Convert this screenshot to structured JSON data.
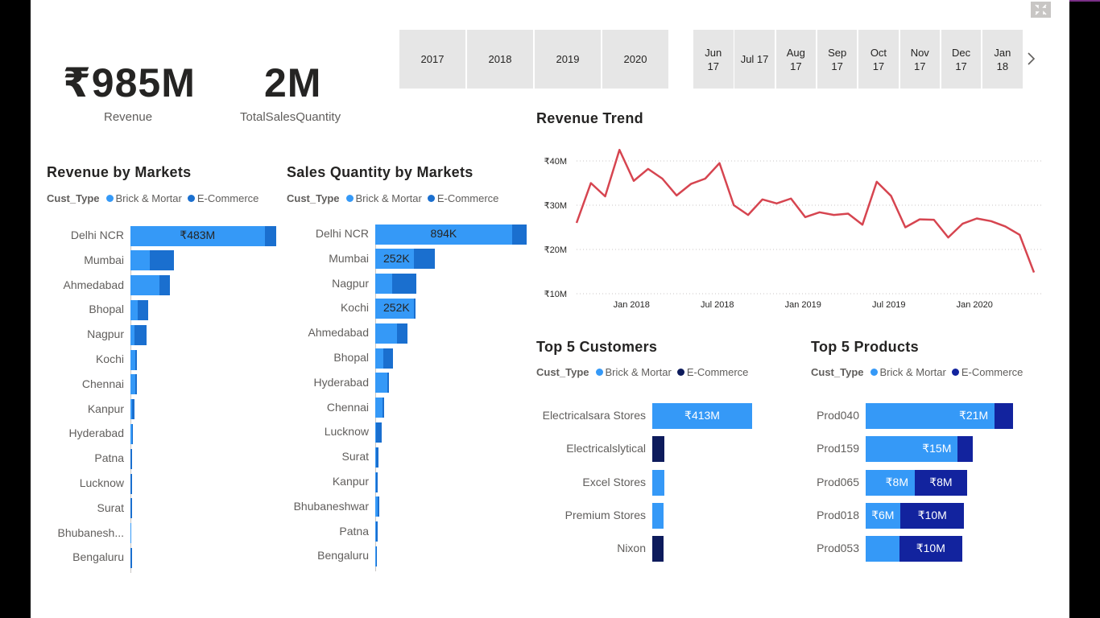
{
  "kpis": {
    "revenue": {
      "value": "₹985M",
      "label": "Revenue"
    },
    "quantity": {
      "value": "2M",
      "label": "TotalSalesQuantity"
    }
  },
  "year_slicer": [
    "2017",
    "2018",
    "2019",
    "2020"
  ],
  "month_slicer": [
    [
      "Jun",
      "17"
    ],
    [
      "Jul 17",
      ""
    ],
    [
      "Aug",
      "17"
    ],
    [
      "Sep",
      "17"
    ],
    [
      "Oct",
      "17"
    ],
    [
      "Nov",
      "17"
    ],
    [
      "Dec",
      "17"
    ],
    [
      "Jan",
      "18"
    ]
  ],
  "icons": {
    "focus": "focus-mode-icon",
    "next": "chevron-right-icon"
  },
  "colors": {
    "brick": "#3599f7",
    "ecom_markets": "#1a6fcf",
    "ecom_top": "#12239e",
    "ecom_customers": "#0d1b5c",
    "trend_line": "#d64550"
  },
  "legend": {
    "field": "Cust_Type",
    "brick": "Brick & Mortar",
    "ecom": "E-Commerce"
  },
  "revenue_markets": {
    "title": "Revenue by Markets",
    "rows": [
      {
        "name": "Delhi NCR",
        "brick": 0.92,
        "ecom": 0.08,
        "total": 1.0,
        "label": "₹483M"
      },
      {
        "name": "Mumbai",
        "brick": 0.13,
        "ecom": 0.17,
        "total": 0.3,
        "label": ""
      },
      {
        "name": "Ahmedabad",
        "brick": 0.2,
        "ecom": 0.07,
        "total": 0.27,
        "label": ""
      },
      {
        "name": "Bhopal",
        "brick": 0.05,
        "ecom": 0.07,
        "total": 0.12,
        "label": ""
      },
      {
        "name": "Nagpur",
        "brick": 0.03,
        "ecom": 0.08,
        "total": 0.11,
        "label": ""
      },
      {
        "name": "Kochi",
        "brick": 0.035,
        "ecom": 0.005,
        "total": 0.04,
        "label": ""
      },
      {
        "name": "Chennai",
        "brick": 0.035,
        "ecom": 0.005,
        "total": 0.04,
        "label": ""
      },
      {
        "name": "Kanpur",
        "brick": 0.01,
        "ecom": 0.015,
        "total": 0.025,
        "label": ""
      },
      {
        "name": "Hyderabad",
        "brick": 0.01,
        "ecom": 0.005,
        "total": 0.015,
        "label": ""
      },
      {
        "name": "Patna",
        "brick": 0.0,
        "ecom": 0.01,
        "total": 0.01,
        "label": ""
      },
      {
        "name": "Lucknow",
        "brick": 0.0,
        "ecom": 0.01,
        "total": 0.01,
        "label": ""
      },
      {
        "name": "Surat",
        "brick": 0.0,
        "ecom": 0.008,
        "total": 0.008,
        "label": ""
      },
      {
        "name": "Bhubanesh...",
        "brick": 0.004,
        "ecom": 0.0,
        "total": 0.004,
        "label": ""
      },
      {
        "name": "Bengaluru",
        "brick": 0.0,
        "ecom": 0.004,
        "total": 0.004,
        "label": ""
      }
    ]
  },
  "quantity_markets": {
    "title": "Sales Quantity by Markets",
    "rows": [
      {
        "name": "Delhi NCR",
        "brick": 894,
        "ecom": 96,
        "label": "894K"
      },
      {
        "name": "Mumbai",
        "brick": 252,
        "ecom": 140,
        "label": "252K"
      },
      {
        "name": "Nagpur",
        "brick": 110,
        "ecom": 160,
        "label": ""
      },
      {
        "name": "Kochi",
        "brick": 252,
        "ecom": 10,
        "label": "252K"
      },
      {
        "name": "Ahmedabad",
        "brick": 140,
        "ecom": 70,
        "label": ""
      },
      {
        "name": "Bhopal",
        "brick": 55,
        "ecom": 60,
        "label": ""
      },
      {
        "name": "Hyderabad",
        "brick": 80,
        "ecom": 5,
        "label": ""
      },
      {
        "name": "Chennai",
        "brick": 50,
        "ecom": 5,
        "label": ""
      },
      {
        "name": "Lucknow",
        "brick": 5,
        "ecom": 35,
        "label": ""
      },
      {
        "name": "Surat",
        "brick": 3,
        "ecom": 18,
        "label": ""
      },
      {
        "name": "Kanpur",
        "brick": 3,
        "ecom": 14,
        "label": ""
      },
      {
        "name": "Bhubaneshwar",
        "brick": 16,
        "ecom": 3,
        "label": ""
      },
      {
        "name": "Patna",
        "brick": 3,
        "ecom": 12,
        "label": ""
      },
      {
        "name": "Bengaluru",
        "brick": 3,
        "ecom": 8,
        "label": ""
      }
    ]
  },
  "revenue_trend": {
    "title": "Revenue Trend",
    "y_ticks": [
      "₹40M",
      "₹30M",
      "₹20M",
      "₹10M"
    ],
    "x_ticks": [
      "Jan 2018",
      "Jul 2018",
      "Jan 2019",
      "Jul 2019",
      "Jan 2020"
    ]
  },
  "chart_data": {
    "type": "line",
    "title": "Revenue Trend",
    "x": [
      "Oct 2017",
      "Nov 2017",
      "Dec 2017",
      "Jan 2018",
      "Feb 2018",
      "Mar 2018",
      "Apr 2018",
      "May 2018",
      "Jun 2018",
      "Jul 2018",
      "Aug 2018",
      "Sep 2018",
      "Oct 2018",
      "Nov 2018",
      "Dec 2018",
      "Jan 2019",
      "Feb 2019",
      "Mar 2019",
      "Apr 2019",
      "May 2019",
      "Jun 2019",
      "Jul 2019",
      "Aug 2019",
      "Sep 2019",
      "Oct 2019",
      "Nov 2019",
      "Dec 2019",
      "Jan 2020",
      "Feb 2020",
      "Mar 2020",
      "Apr 2020",
      "May 2020",
      "Jun 2020"
    ],
    "series": [
      {
        "values": [
          26,
          35,
          32,
          42.5,
          35.5,
          38.2,
          36,
          32.2,
          34.8,
          36,
          39.5,
          30,
          27.8,
          31.3,
          30.4,
          31.5,
          27.3,
          28.4,
          27.8,
          28.1,
          25.6,
          35.3,
          32.1,
          25,
          26.8,
          26.7,
          22.7,
          25.8,
          27,
          26.4,
          25.2,
          23.3,
          14.8
        ]
      }
    ],
    "ylim": [
      10,
      40
    ]
  },
  "top_customers": {
    "title": "Top 5 Customers",
    "rows": [
      {
        "name": "Electricalsara Stores",
        "brick": 413,
        "ecom": 0,
        "label": "₹413M"
      },
      {
        "name": "Electricalslytical",
        "brick": 0,
        "ecom": 50,
        "label": ""
      },
      {
        "name": "Excel Stores",
        "brick": 50,
        "ecom": 0,
        "label": ""
      },
      {
        "name": "Premium Stores",
        "brick": 48,
        "ecom": 0,
        "label": ""
      },
      {
        "name": "Nixon",
        "brick": 0,
        "ecom": 48,
        "label": ""
      }
    ]
  },
  "top_products": {
    "title": "Top 5 Products",
    "rows": [
      {
        "name": "Prod040",
        "brick": 21,
        "ecom": 3,
        "blabel": "₹21M",
        "elabel": ""
      },
      {
        "name": "Prod159",
        "brick": 15,
        "ecom": 2.5,
        "blabel": "₹15M",
        "elabel": ""
      },
      {
        "name": "Prod065",
        "brick": 8,
        "ecom": 8.5,
        "blabel": "₹8M",
        "elabel": "₹8M"
      },
      {
        "name": "Prod018",
        "brick": 5.7,
        "ecom": 10.3,
        "blabel": "₹6M",
        "elabel": "₹10M"
      },
      {
        "name": "Prod053",
        "brick": 5.5,
        "ecom": 10.2,
        "blabel": "",
        "elabel": "₹10M"
      }
    ]
  }
}
